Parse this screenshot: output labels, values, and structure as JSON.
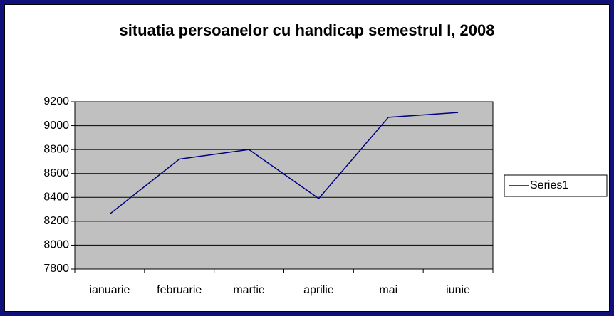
{
  "chart_data": {
    "type": "line",
    "title": "situatia persoanelor cu handicap semestrul I, 2008",
    "categories": [
      "ianuarie",
      "februarie",
      "martie",
      "aprilie",
      "mai",
      "iunie"
    ],
    "series": [
      {
        "name": "Series1",
        "color": "#000080",
        "values": [
          8260,
          8720,
          8800,
          8390,
          9070,
          9110
        ]
      }
    ],
    "ylim": [
      7800,
      9200
    ],
    "yticks": [
      7800,
      8000,
      8200,
      8400,
      8600,
      8800,
      9000,
      9200
    ],
    "grid": true,
    "legend": "right",
    "plot_background": "#c0c0c0"
  }
}
